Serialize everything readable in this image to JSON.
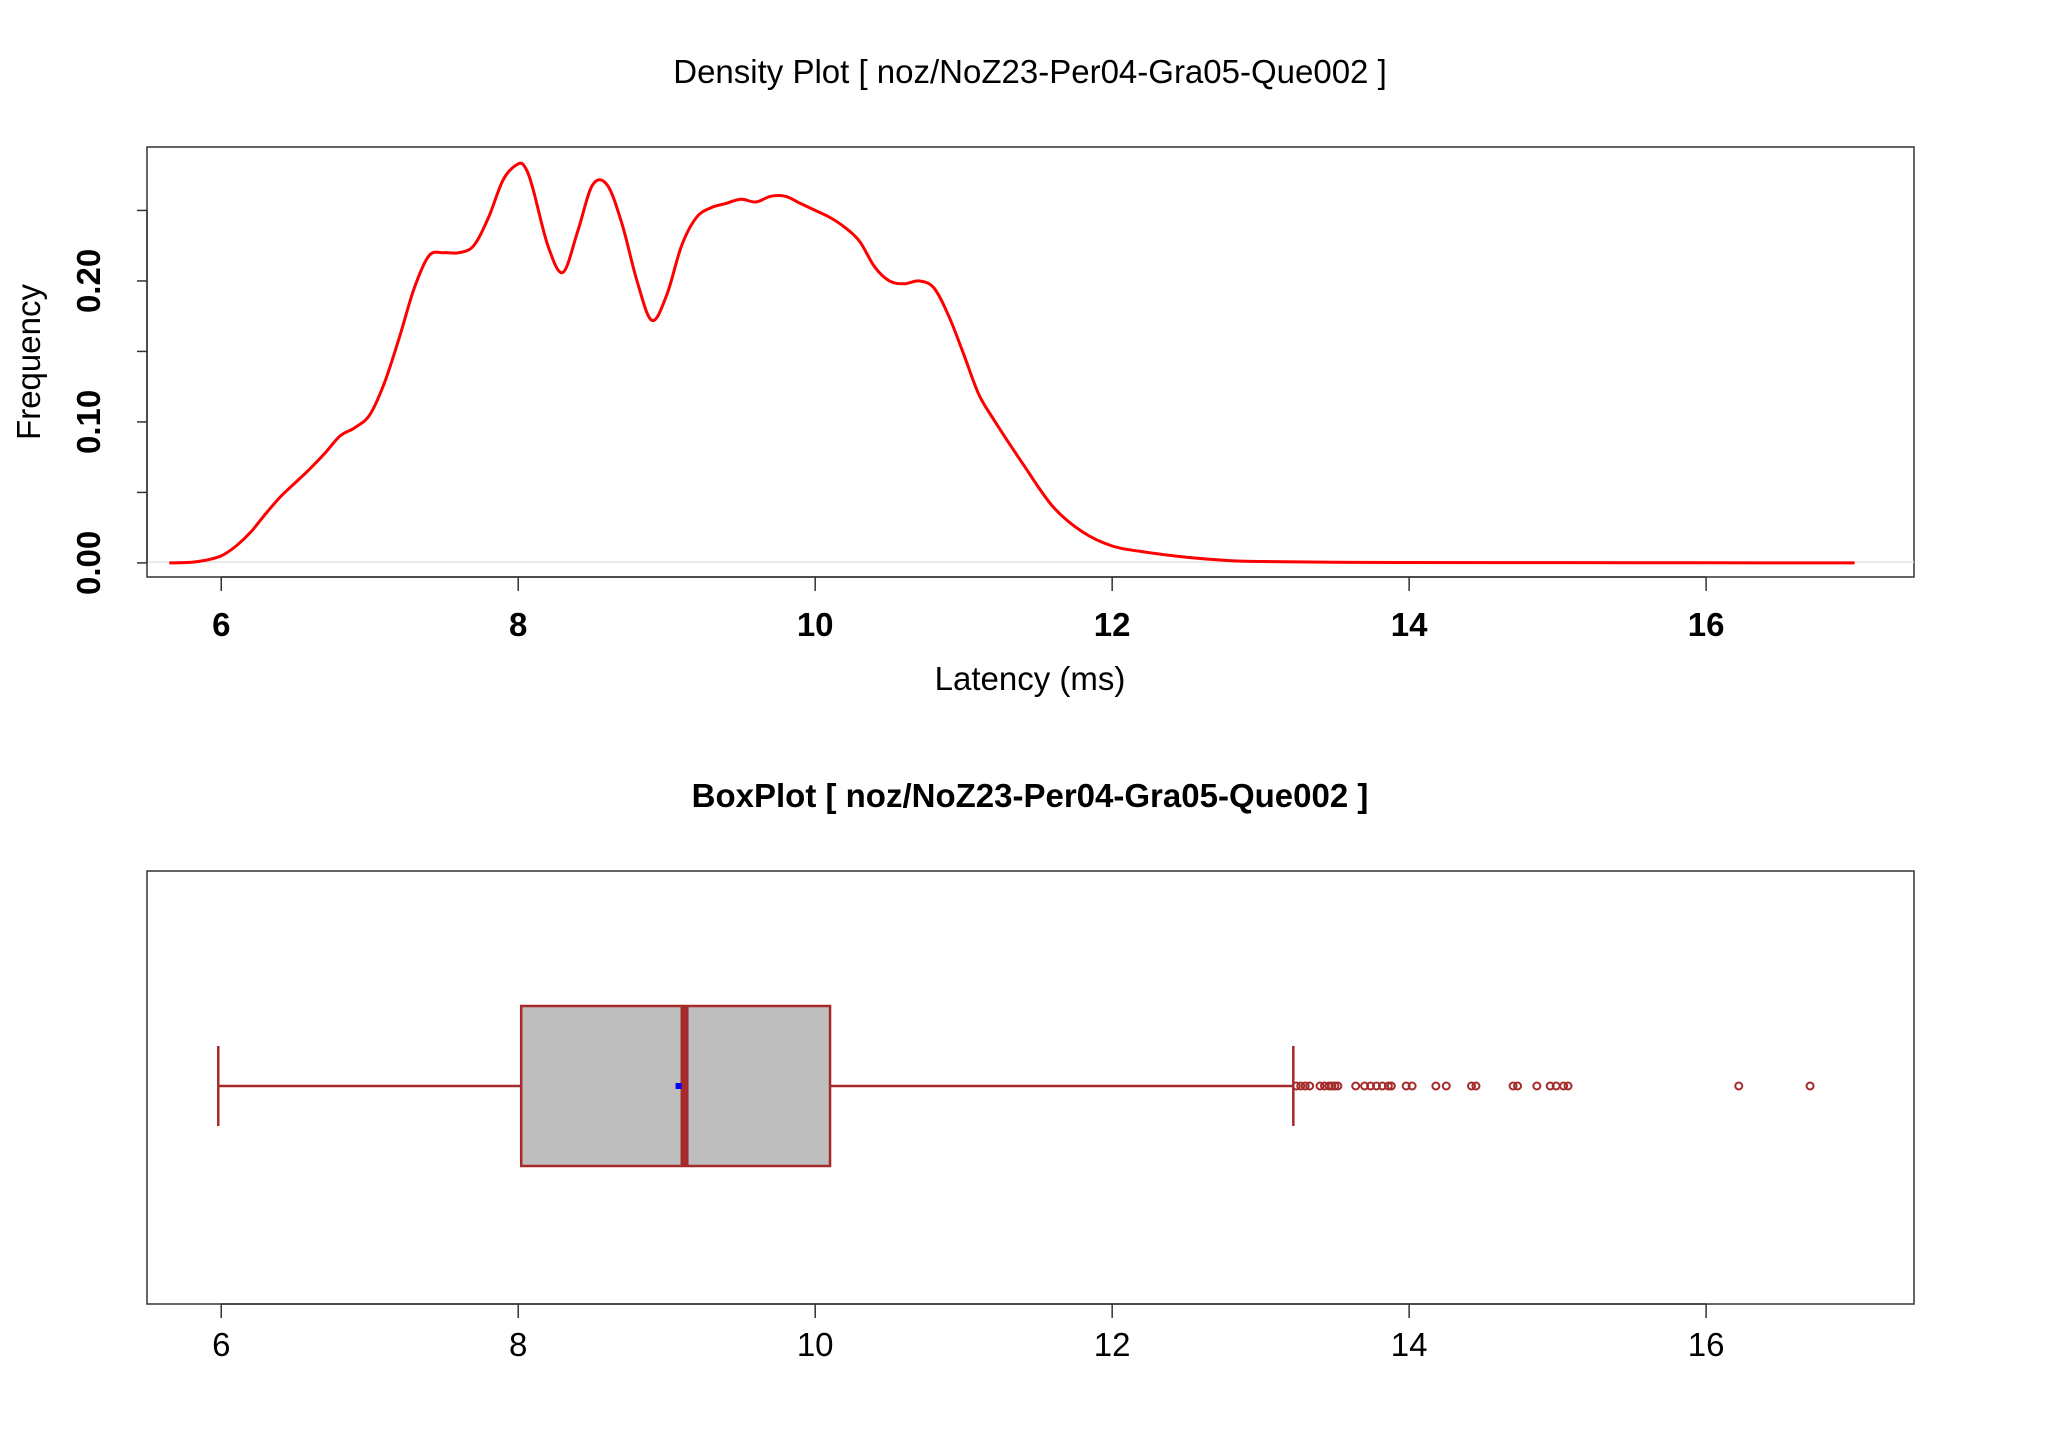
{
  "chart_data": [
    {
      "type": "line",
      "title": "Density Plot [ noz/NoZ23-Per04-Gra05-Que002 ]",
      "xlabel": "Latency (ms)",
      "ylabel": "Frequency",
      "xlim": [
        5.5,
        17.4
      ],
      "ylim": [
        -0.01,
        0.295
      ],
      "x_ticks": [
        6,
        8,
        10,
        12,
        14,
        16
      ],
      "x_tick_labels": [
        "6",
        "8",
        "10",
        "12",
        "14",
        "16"
      ],
      "y_ticks": [
        0.0,
        0.05,
        0.1,
        0.15,
        0.2,
        0.25
      ],
      "y_tick_labels": [
        "0.00",
        "",
        "0.10",
        "",
        "0.20",
        ""
      ],
      "grid": false,
      "color": "#ff0000",
      "series": [
        {
          "x": [
            5.65,
            5.8,
            5.9,
            6.0,
            6.1,
            6.2,
            6.3,
            6.4,
            6.5,
            6.6,
            6.7,
            6.8,
            6.9,
            7.0,
            7.1,
            7.2,
            7.3,
            7.4,
            7.5,
            7.6,
            7.7,
            7.8,
            7.9,
            8.0,
            8.05,
            8.1,
            8.2,
            8.3,
            8.4,
            8.5,
            8.6,
            8.7,
            8.8,
            8.9,
            9.0,
            9.1,
            9.2,
            9.3,
            9.4,
            9.5,
            9.6,
            9.7,
            9.8,
            9.9,
            10.0,
            10.1,
            10.2,
            10.3,
            10.4,
            10.5,
            10.6,
            10.7,
            10.8,
            10.9,
            11.0,
            11.1,
            11.2,
            11.4,
            11.6,
            11.8,
            12.0,
            12.2,
            12.5,
            12.8,
            13.0,
            13.5,
            14.0,
            15.0,
            16.0,
            17.0
          ],
          "y": [
            0.0,
            0.0005,
            0.002,
            0.005,
            0.012,
            0.022,
            0.035,
            0.047,
            0.057,
            0.067,
            0.078,
            0.09,
            0.096,
            0.105,
            0.128,
            0.16,
            0.195,
            0.218,
            0.22,
            0.22,
            0.225,
            0.245,
            0.272,
            0.283,
            0.28,
            0.265,
            0.225,
            0.206,
            0.235,
            0.268,
            0.268,
            0.24,
            0.2,
            0.172,
            0.19,
            0.225,
            0.245,
            0.252,
            0.255,
            0.258,
            0.256,
            0.26,
            0.26,
            0.255,
            0.25,
            0.245,
            0.238,
            0.228,
            0.21,
            0.2,
            0.198,
            0.2,
            0.195,
            0.175,
            0.148,
            0.12,
            0.102,
            0.07,
            0.04,
            0.022,
            0.012,
            0.008,
            0.004,
            0.0015,
            0.001,
            0.0005,
            0.0003,
            0.0002,
            0.0001,
            0.0
          ]
        }
      ]
    },
    {
      "type": "box",
      "title": "BoxPlot [ noz/NoZ23-Per04-Gra05-Que002 ]",
      "xlim": [
        5.5,
        17.4
      ],
      "x_ticks": [
        6,
        8,
        10,
        12,
        14,
        16
      ],
      "x_tick_labels": [
        "6",
        "8",
        "10",
        "12",
        "14",
        "16"
      ],
      "min": 5.98,
      "q1": 8.02,
      "median": 9.12,
      "mean": 9.08,
      "q3": 10.1,
      "max": 13.22,
      "outliers": [
        13.24,
        13.27,
        13.3,
        13.33,
        13.4,
        13.43,
        13.46,
        13.48,
        13.5,
        13.52,
        13.64,
        13.7,
        13.74,
        13.78,
        13.82,
        13.86,
        13.88,
        13.98,
        14.02,
        14.18,
        14.25,
        14.42,
        14.45,
        14.7,
        14.73,
        14.86,
        14.95,
        14.99,
        15.04,
        15.07,
        16.22,
        16.7
      ],
      "box_fill": "#bebebe",
      "line_color": "#a52a2a",
      "mean_color": "#0000ff"
    }
  ]
}
